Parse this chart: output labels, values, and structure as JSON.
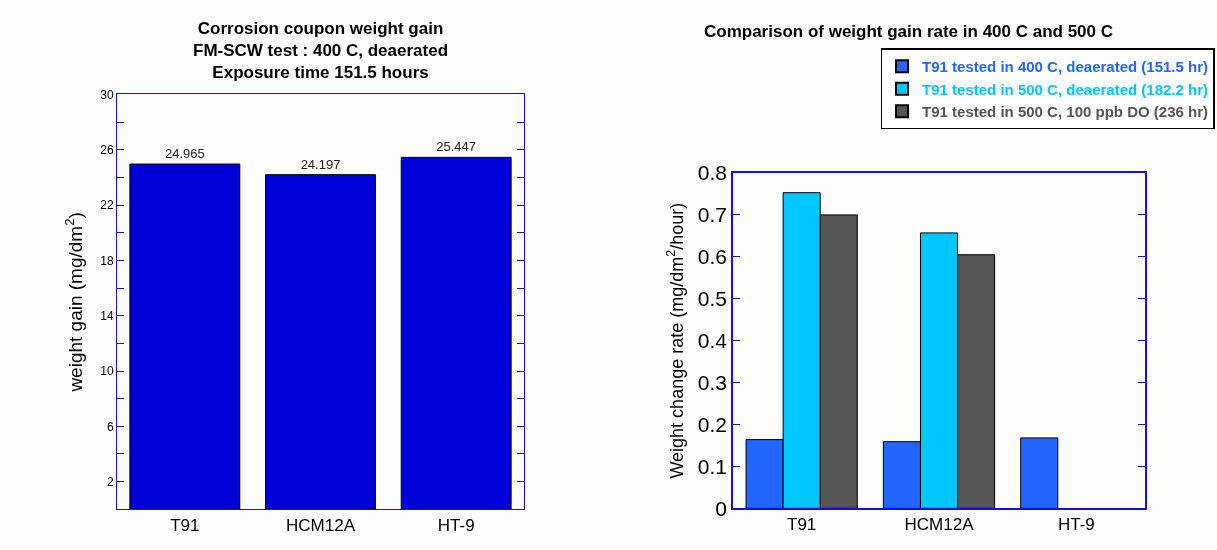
{
  "chart_data": [
    {
      "type": "bar",
      "title": "Corrosion coupon weight gain\nFM-SCW test : 400 C, deaerated\nExposure time 151.5 hours",
      "ylabel": "weight gain (mg/dm$^{2}$)",
      "categories": [
        "T91",
        "HCM12A",
        "HT-9"
      ],
      "values": [
        24.965,
        24.197,
        25.447
      ],
      "color": "#0000d8",
      "data_labels": true,
      "ylim": [
        0,
        30
      ],
      "yticks": [
        2,
        {
          "value": 4,
          "label": null
        },
        6,
        {
          "value": 8,
          "label": null
        },
        10,
        {
          "value": 12,
          "label": null
        },
        14,
        {
          "value": 16,
          "label": null
        },
        18,
        {
          "value": 20,
          "label": null
        },
        22,
        {
          "value": 24,
          "label": null
        },
        26,
        {
          "value": 28,
          "label": null
        },
        30
      ],
      "legend": false
    },
    {
      "type": "bar",
      "title": "Comparison of weight gain rate in 400 C and 500 C",
      "ylabel": "Weight change rate (mg/dm$^{2}$/hour)",
      "categories": [
        "T91",
        "HCM12A",
        "HT-9"
      ],
      "series": [
        {
          "name": "T91 tested in 400 C, deaerated (151.5 hr)",
          "color": "#2266ff",
          "values": [
            0.164,
            0.159,
            0.168
          ]
        },
        {
          "name": "T91 tested in 500 C, deaerated (182.2 hr)",
          "color": "#00c8ff",
          "values": [
            0.753,
            0.657,
            null
          ]
        },
        {
          "name": "T91 tested in 500 C, 100 ppb DO (236 hr)",
          "color": "#555555",
          "values": [
            0.7,
            0.605,
            null
          ]
        }
      ],
      "ylim": [
        0,
        0.8
      ],
      "yticks": [
        0,
        0.1,
        0.2,
        0.3,
        0.4,
        0.5,
        0.6,
        0.7,
        0.8
      ],
      "legend": "top right"
    }
  ]
}
